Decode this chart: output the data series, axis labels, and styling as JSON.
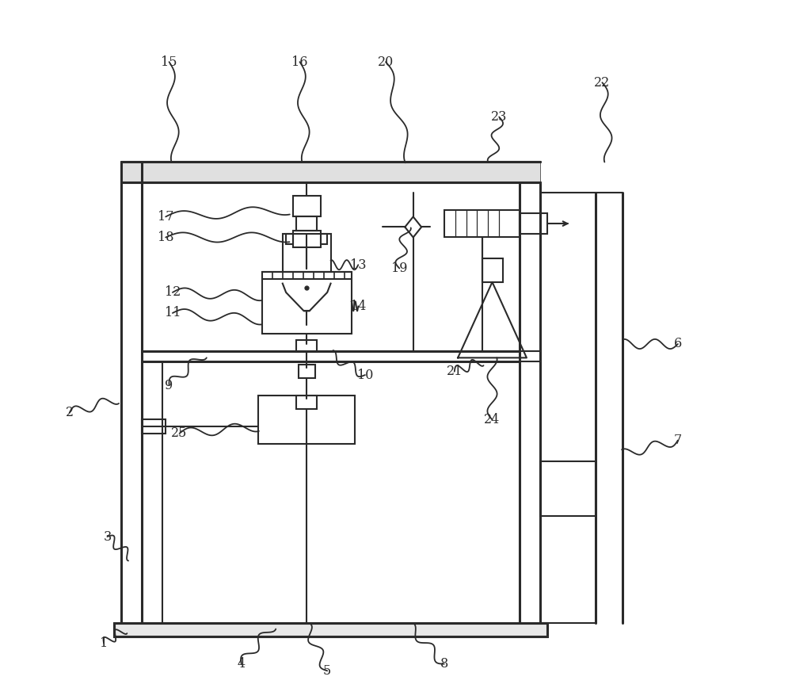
{
  "bg_color": "#ffffff",
  "line_color": "#2a2a2a",
  "lw_main": 2.2,
  "lw_thin": 1.5,
  "lw_leader": 1.3,
  "label_fontsize": 11.5,
  "fig_width": 10.0,
  "fig_height": 8.68,
  "labels": [
    [
      "1",
      7.5,
      6.5
    ],
    [
      "2",
      2.5,
      40.0
    ],
    [
      "3",
      8.5,
      22.0
    ],
    [
      "4",
      27.5,
      3.5
    ],
    [
      "5",
      40.0,
      2.5
    ],
    [
      "6",
      91.0,
      50.0
    ],
    [
      "7",
      91.0,
      36.0
    ],
    [
      "8",
      57.0,
      3.5
    ],
    [
      "9",
      17.0,
      44.0
    ],
    [
      "10",
      45.5,
      45.5
    ],
    [
      "11",
      17.5,
      54.5
    ],
    [
      "12",
      17.5,
      57.5
    ],
    [
      "13",
      44.0,
      61.5
    ],
    [
      "14",
      44.0,
      55.5
    ],
    [
      "15",
      17.0,
      91.0
    ],
    [
      "16",
      36.0,
      91.0
    ],
    [
      "17",
      16.5,
      68.5
    ],
    [
      "18",
      16.5,
      65.5
    ],
    [
      "19",
      50.5,
      61.0
    ],
    [
      "20",
      48.5,
      91.0
    ],
    [
      "21",
      58.5,
      46.0
    ],
    [
      "22",
      80.0,
      88.0
    ],
    [
      "23",
      65.0,
      83.0
    ],
    [
      "24",
      64.0,
      39.0
    ],
    [
      "25",
      18.5,
      37.0
    ]
  ]
}
